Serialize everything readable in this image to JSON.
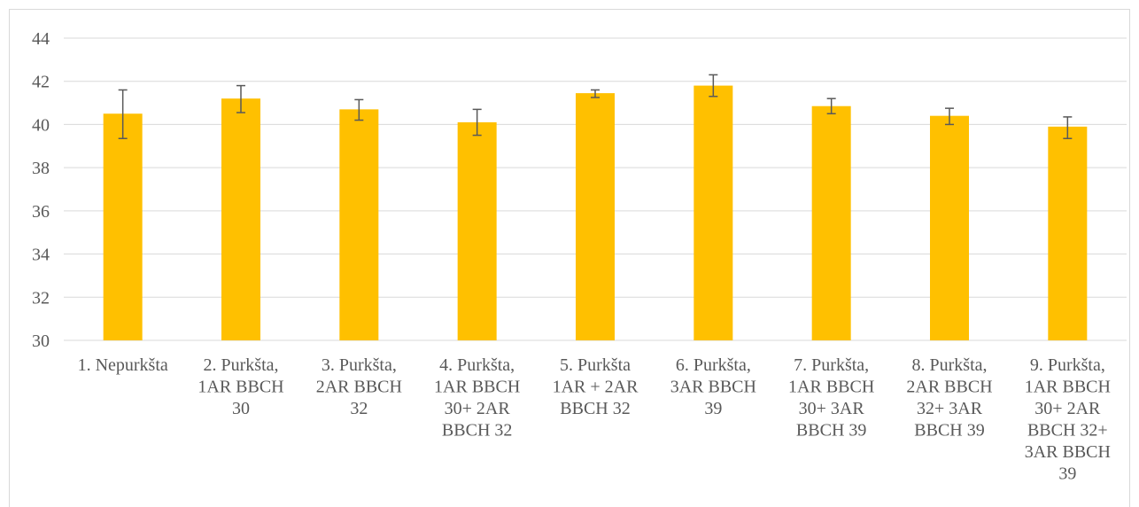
{
  "chart_data": {
    "type": "bar",
    "title": "",
    "xlabel": "",
    "ylabel": "",
    "ylim": [
      30,
      44
    ],
    "yticks": [
      30,
      32,
      34,
      36,
      38,
      40,
      42,
      44
    ],
    "grid": true,
    "colors": {
      "bar": "#FFC000",
      "grid": "#d9d9d9",
      "error": "#595959",
      "text": "#595959"
    },
    "categories": [
      [
        "1. Nepurkšta"
      ],
      [
        "2. Purkšta,",
        "1AR BBCH",
        "30"
      ],
      [
        "3. Purkšta,",
        "2AR BBCH",
        "32"
      ],
      [
        "4. Purkšta,",
        "1AR BBCH",
        "30+  2AR",
        "BBCH 32"
      ],
      [
        "5. Purkšta",
        "1AR + 2AR",
        "BBCH 32"
      ],
      [
        "6. Purkšta,",
        "3AR BBCH",
        "39"
      ],
      [
        "7. Purkšta,",
        "1AR BBCH",
        "30+  3AR",
        "BBCH 39"
      ],
      [
        "8. Purkšta,",
        "2AR BBCH",
        "32+  3AR",
        "BBCH 39"
      ],
      [
        "9. Purkšta,",
        "1AR BBCH",
        "30+  2AR",
        "BBCH 32+",
        "3AR BBCH",
        "39"
      ]
    ],
    "values": [
      40.5,
      41.2,
      40.7,
      40.1,
      41.45,
      41.8,
      40.85,
      40.4,
      39.9
    ],
    "error_low": [
      39.35,
      40.55,
      40.2,
      39.5,
      41.25,
      41.3,
      40.5,
      40.0,
      39.35
    ],
    "error_high": [
      41.6,
      41.8,
      41.15,
      40.7,
      41.6,
      42.3,
      41.2,
      40.75,
      40.35
    ]
  }
}
